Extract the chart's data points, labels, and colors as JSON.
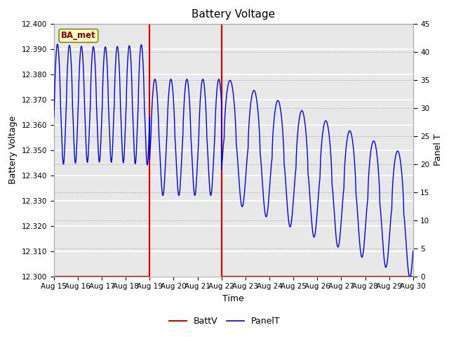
{
  "title": "Battery Voltage",
  "xlabel": "Time",
  "ylabel_left": "Battery Voltage",
  "ylabel_right": "Panel T",
  "ylim_left": [
    12.3,
    12.4
  ],
  "ylim_right": [
    0,
    45
  ],
  "yticks_left": [
    12.3,
    12.31,
    12.32,
    12.33,
    12.34,
    12.35,
    12.36,
    12.37,
    12.38,
    12.39,
    12.4
  ],
  "yticks_right": [
    0,
    5,
    10,
    15,
    20,
    25,
    30,
    35,
    40,
    45
  ],
  "bg_color": "#ffffff",
  "plot_bg_color": "#e8e8e8",
  "panel_line_color": "#0000ee",
  "battv_line_color": "#dd0000",
  "vline1_day": 4,
  "vline2_day": 7,
  "annotation_text": "BA_met",
  "xtick_labels": [
    "Aug 15",
    "Aug 16",
    "Aug 17",
    "Aug 18",
    "Aug 19",
    "Aug 20",
    "Aug 21",
    "Aug 22",
    "Aug 23",
    "Aug 24",
    "Aug 25",
    "Aug 26",
    "Aug 27",
    "Aug 28",
    "Aug 29",
    "Aug 30"
  ],
  "title_fontsize": 11,
  "tick_fontsize": 7.5,
  "label_fontsize": 9
}
